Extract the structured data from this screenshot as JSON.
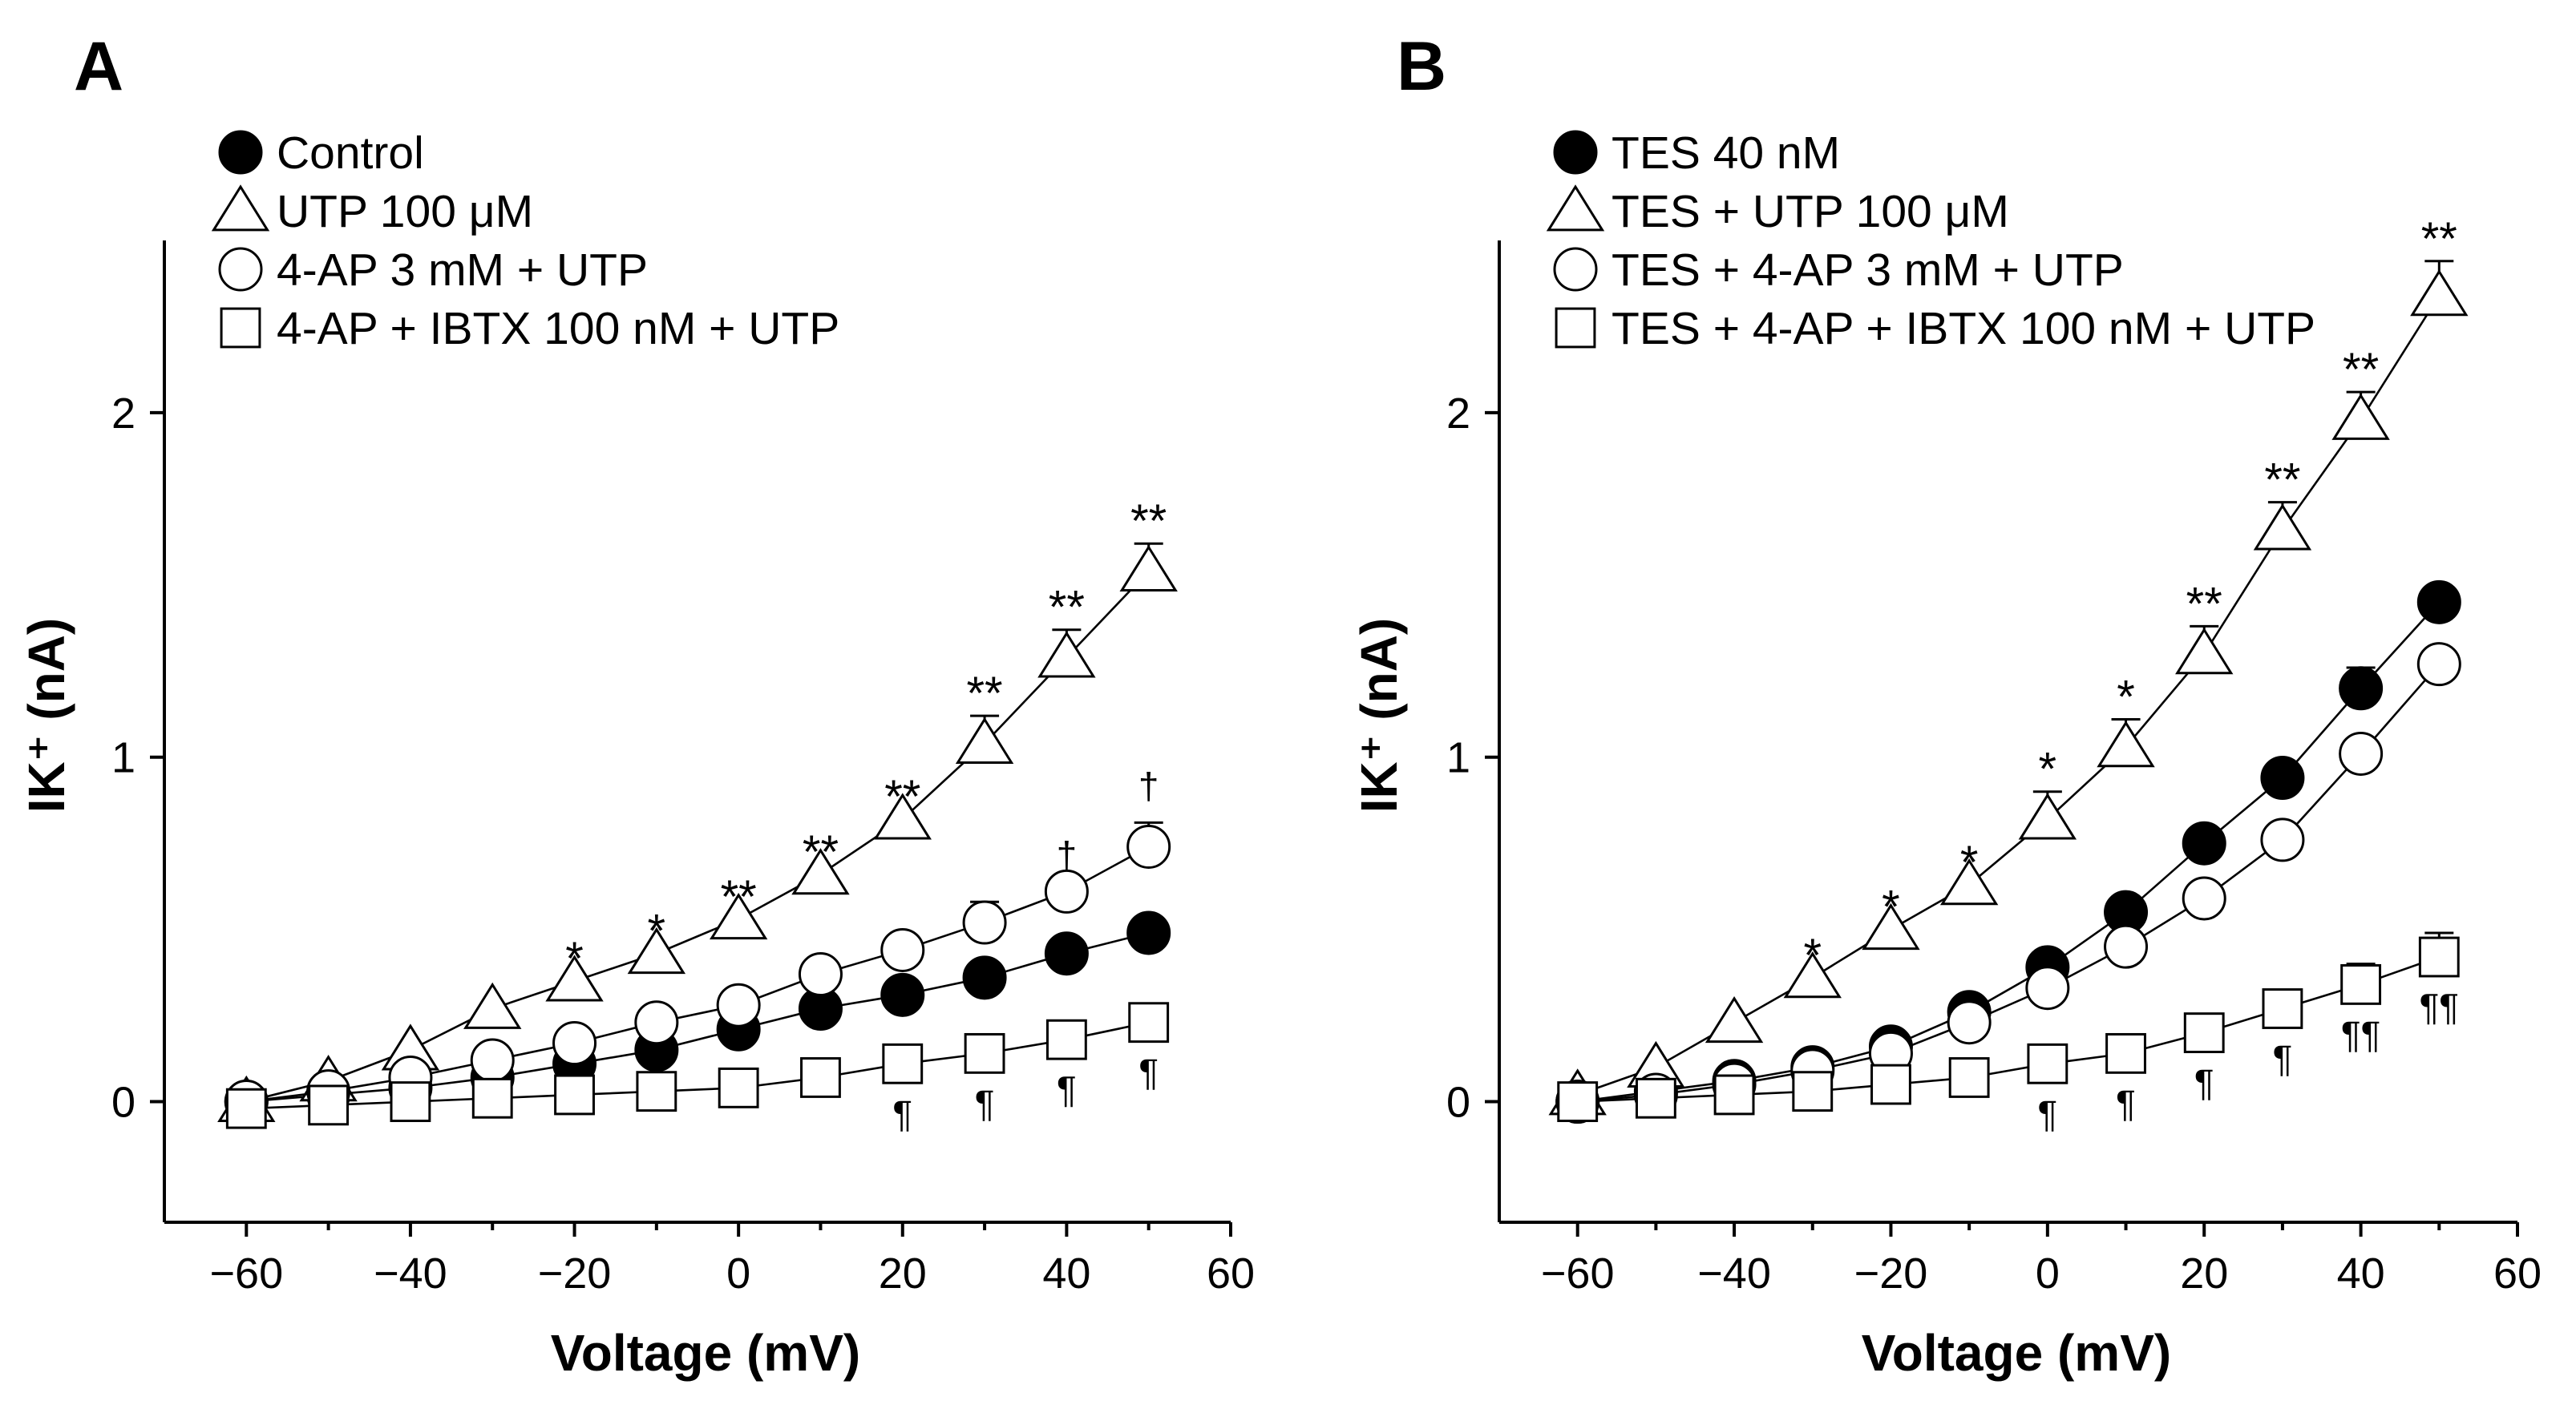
{
  "chart_data": [
    {
      "type": "line",
      "panel_label": "A",
      "xlabel": "Voltage (mV)",
      "ylabel": "IK⁺ (nA)",
      "xlim": [
        -70,
        60
      ],
      "ylim": [
        -0.35,
        2.5
      ],
      "xticks": [
        -60,
        -40,
        -20,
        0,
        20,
        40,
        60
      ],
      "xtick_labels": [
        "−60",
        "−40",
        "−20",
        "0",
        "20",
        "40",
        "60"
      ],
      "yticks": [
        0,
        1,
        2
      ],
      "ytick_labels": [
        "0",
        "1",
        "2"
      ],
      "legend_position": "top-left",
      "x": [
        -60,
        -50,
        -40,
        -30,
        -20,
        -10,
        0,
        10,
        20,
        30,
        40,
        50
      ],
      "series": [
        {
          "name": "Control",
          "marker": "filled-circle",
          "values": [
            0,
            0.02,
            0.04,
            0.07,
            0.11,
            0.15,
            0.21,
            0.27,
            0.31,
            0.36,
            0.43,
            0.49
          ],
          "errors": [
            0,
            0,
            0,
            0,
            0,
            0,
            0,
            0,
            0,
            0,
            0,
            0
          ]
        },
        {
          "name": "UTP 100 μM",
          "marker": "open-triangle",
          "values": [
            0,
            0.06,
            0.15,
            0.27,
            0.35,
            0.43,
            0.53,
            0.66,
            0.82,
            1.04,
            1.29,
            1.54
          ],
          "errors": [
            0,
            0,
            0,
            0,
            0,
            0,
            0,
            0,
            0,
            0.08,
            0.08,
            0.08
          ]
        },
        {
          "name": "4-AP 3 mM + UTP",
          "marker": "open-circle",
          "values": [
            0,
            0.03,
            0.07,
            0.12,
            0.17,
            0.23,
            0.28,
            0.37,
            0.44,
            0.52,
            0.61,
            0.74
          ],
          "errors": [
            0,
            0,
            0,
            0,
            0,
            0,
            0,
            0,
            0,
            0.06,
            0,
            0.07
          ]
        },
        {
          "name": "4-AP + IBTX 100 nM + UTP",
          "marker": "open-square",
          "values": [
            -0.02,
            -0.01,
            0,
            0.01,
            0.02,
            0.03,
            0.04,
            0.07,
            0.11,
            0.14,
            0.18,
            0.23
          ],
          "errors": [
            0,
            0,
            0,
            0,
            0,
            0,
            0,
            0,
            0,
            0,
            0,
            0
          ]
        }
      ],
      "annotations": [
        {
          "x": -20,
          "y": 0.35,
          "text": "*",
          "position": "above"
        },
        {
          "x": -10,
          "y": 0.43,
          "text": "*",
          "position": "above"
        },
        {
          "x": 0,
          "y": 0.53,
          "text": "**",
          "position": "above"
        },
        {
          "x": 10,
          "y": 0.66,
          "text": "**",
          "position": "above"
        },
        {
          "x": 20,
          "y": 0.82,
          "text": "**",
          "position": "above"
        },
        {
          "x": 30,
          "y": 1.12,
          "text": "**",
          "position": "above"
        },
        {
          "x": 40,
          "y": 1.37,
          "text": "**",
          "position": "above"
        },
        {
          "x": 50,
          "y": 1.62,
          "text": "**",
          "position": "above"
        },
        {
          "x": 40,
          "y": 0.61,
          "text": "†",
          "position": "above"
        },
        {
          "x": 50,
          "y": 0.81,
          "text": "†",
          "position": "above"
        },
        {
          "x": 20,
          "y": 0.11,
          "text": "¶",
          "position": "below"
        },
        {
          "x": 30,
          "y": 0.14,
          "text": "¶",
          "position": "below"
        },
        {
          "x": 40,
          "y": 0.18,
          "text": "¶",
          "position": "below"
        },
        {
          "x": 50,
          "y": 0.23,
          "text": "¶",
          "position": "below"
        }
      ]
    },
    {
      "type": "line",
      "panel_label": "B",
      "xlabel": "Voltage (mV)",
      "ylabel": "IK⁺ (nA)",
      "xlim": [
        -70,
        60
      ],
      "ylim": [
        -0.35,
        2.5
      ],
      "xticks": [
        -60,
        -40,
        -20,
        0,
        20,
        40,
        60
      ],
      "xtick_labels": [
        "−60",
        "−40",
        "−20",
        "0",
        "20",
        "40",
        "60"
      ],
      "yticks": [
        0,
        1,
        2
      ],
      "ytick_labels": [
        "0",
        "1",
        "2"
      ],
      "legend_position": "top-left",
      "x": [
        -60,
        -50,
        -40,
        -30,
        -20,
        -10,
        0,
        10,
        20,
        30,
        40,
        50
      ],
      "series": [
        {
          "name": "TES 40 nM",
          "marker": "filled-circle",
          "values": [
            0,
            0.03,
            0.06,
            0.1,
            0.16,
            0.26,
            0.39,
            0.55,
            0.75,
            0.94,
            1.2,
            1.45
          ],
          "errors": [
            0,
            0,
            0,
            0,
            0,
            0,
            0,
            0,
            0,
            0,
            0.06,
            0
          ]
        },
        {
          "name": "TES + UTP 100 μM",
          "marker": "open-triangle",
          "values": [
            0.02,
            0.1,
            0.23,
            0.36,
            0.5,
            0.63,
            0.82,
            1.03,
            1.3,
            1.66,
            1.98,
            2.34
          ],
          "errors": [
            0,
            0,
            0,
            0,
            0,
            0,
            0.08,
            0.08,
            0.08,
            0.08,
            0.08,
            0.1
          ]
        },
        {
          "name": "TES + 4-AP 3 mM + UTP",
          "marker": "open-circle",
          "values": [
            0,
            0.02,
            0.05,
            0.09,
            0.14,
            0.23,
            0.33,
            0.45,
            0.59,
            0.76,
            1.01,
            1.27
          ],
          "errors": [
            0,
            0,
            0,
            0,
            0,
            0,
            0,
            0,
            0,
            0,
            0,
            0
          ]
        },
        {
          "name": "TES + 4-AP + IBTX 100 nM + UTP",
          "marker": "open-square",
          "values": [
            0,
            0.01,
            0.02,
            0.03,
            0.05,
            0.07,
            0.11,
            0.14,
            0.2,
            0.27,
            0.34,
            0.42
          ],
          "errors": [
            0,
            0,
            0,
            0,
            0,
            0,
            0,
            0,
            0,
            0.05,
            0.06,
            0.07
          ]
        }
      ],
      "annotations": [
        {
          "x": -30,
          "y": 0.36,
          "text": "*",
          "position": "above"
        },
        {
          "x": -20,
          "y": 0.5,
          "text": "*",
          "position": "above"
        },
        {
          "x": -10,
          "y": 0.63,
          "text": "*",
          "position": "above"
        },
        {
          "x": 0,
          "y": 0.9,
          "text": "*",
          "position": "above"
        },
        {
          "x": 10,
          "y": 1.11,
          "text": "*",
          "position": "above"
        },
        {
          "x": 20,
          "y": 1.38,
          "text": "**",
          "position": "above"
        },
        {
          "x": 30,
          "y": 1.74,
          "text": "**",
          "position": "above"
        },
        {
          "x": 40,
          "y": 2.06,
          "text": "**",
          "position": "above"
        },
        {
          "x": 50,
          "y": 2.44,
          "text": "**",
          "position": "above"
        },
        {
          "x": 0,
          "y": 0.11,
          "text": "¶",
          "position": "below"
        },
        {
          "x": 10,
          "y": 0.14,
          "text": "¶",
          "position": "below"
        },
        {
          "x": 20,
          "y": 0.2,
          "text": "¶",
          "position": "below"
        },
        {
          "x": 30,
          "y": 0.27,
          "text": "¶",
          "position": "below"
        },
        {
          "x": 40,
          "y": 0.34,
          "text": "¶¶",
          "position": "below"
        },
        {
          "x": 50,
          "y": 0.42,
          "text": "¶¶",
          "position": "below"
        }
      ]
    }
  ]
}
